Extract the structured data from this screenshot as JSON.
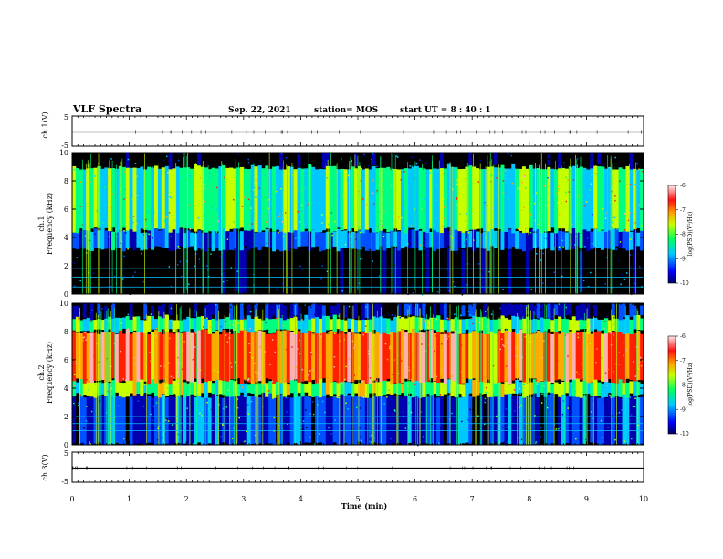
{
  "header": {
    "title": "VLF Spectra",
    "date": "Sep. 22, 2021",
    "station": "station= MOS",
    "start": "start UT = 8 : 40 : 1"
  },
  "chart_data": [
    {
      "type": "line",
      "name": "ch1-waveform",
      "ylabel": "ch.1(V)",
      "ylim": [
        -5,
        5
      ],
      "yticks": [
        "5",
        "-5"
      ],
      "x": [
        0,
        10
      ],
      "values": [
        0,
        0
      ]
    },
    {
      "type": "heatmap",
      "name": "ch1-spectrogram",
      "ylabel_1": "ch.1",
      "ylabel_2": "Frequency (kHz)",
      "ylim": [
        0,
        10
      ],
      "yticks": [
        "0",
        "2",
        "4",
        "6",
        "8",
        "10"
      ],
      "xlim": [
        0,
        10
      ],
      "colorbar": {
        "label": "log(PSD)(V²/Hz)",
        "ticks": [
          "-6",
          "-7",
          "-8",
          "-9",
          "-10"
        ],
        "range": [
          -10,
          -6
        ]
      },
      "bands": [
        {
          "freq_lo": 0,
          "freq_hi": 3.2,
          "level": -10
        },
        {
          "freq_lo": 3.2,
          "freq_hi": 4.5,
          "level": -8.8
        },
        {
          "freq_lo": 4.5,
          "freq_hi": 9.0,
          "level": -8.0
        },
        {
          "freq_lo": 9.0,
          "freq_hi": 10,
          "level": -10
        }
      ],
      "lines_khz": [
        0.5,
        1.2,
        1.8
      ]
    },
    {
      "type": "heatmap",
      "name": "ch2-spectrogram",
      "ylabel_1": "ch.2",
      "ylabel_2": "Frequency (kHz)",
      "ylim": [
        0,
        10
      ],
      "yticks": [
        "0",
        "2",
        "4",
        "6",
        "8",
        "10"
      ],
      "xlim": [
        0,
        10
      ],
      "colorbar": {
        "label": "log(PSD)(V²/Hz)",
        "ticks": [
          "-6",
          "-7",
          "-8",
          "-9",
          "-10"
        ],
        "range": [
          -10,
          -6
        ]
      },
      "bands": [
        {
          "freq_lo": 0,
          "freq_hi": 3.5,
          "level": -9.0
        },
        {
          "freq_lo": 3.5,
          "freq_hi": 4.5,
          "level": -7.8
        },
        {
          "freq_lo": 4.5,
          "freq_hi": 8.0,
          "level": -6.8
        },
        {
          "freq_lo": 8.0,
          "freq_hi": 9.0,
          "level": -8.0
        },
        {
          "freq_lo": 9.0,
          "freq_hi": 10,
          "level": -9.5
        }
      ],
      "lines_khz": [
        1.0,
        1.5,
        2.0
      ]
    },
    {
      "type": "line",
      "name": "ch3-waveform",
      "ylabel": "ch.3(V)",
      "ylim": [
        -5,
        5
      ],
      "yticks": [
        "5",
        "-5"
      ],
      "x": [
        0,
        10
      ],
      "values": [
        0,
        0
      ]
    }
  ],
  "xaxis": {
    "label": "Time (min)",
    "ticks": [
      "0",
      "1",
      "2",
      "3",
      "4",
      "5",
      "6",
      "7",
      "8",
      "9",
      "10"
    ],
    "range": [
      0,
      10
    ]
  },
  "colors": {
    "scale": [
      "#000000",
      "#0000b0",
      "#0050ff",
      "#00c8ff",
      "#00ff80",
      "#c8ff00",
      "#ffaa00",
      "#ff2000",
      "#ffb0b0"
    ]
  }
}
